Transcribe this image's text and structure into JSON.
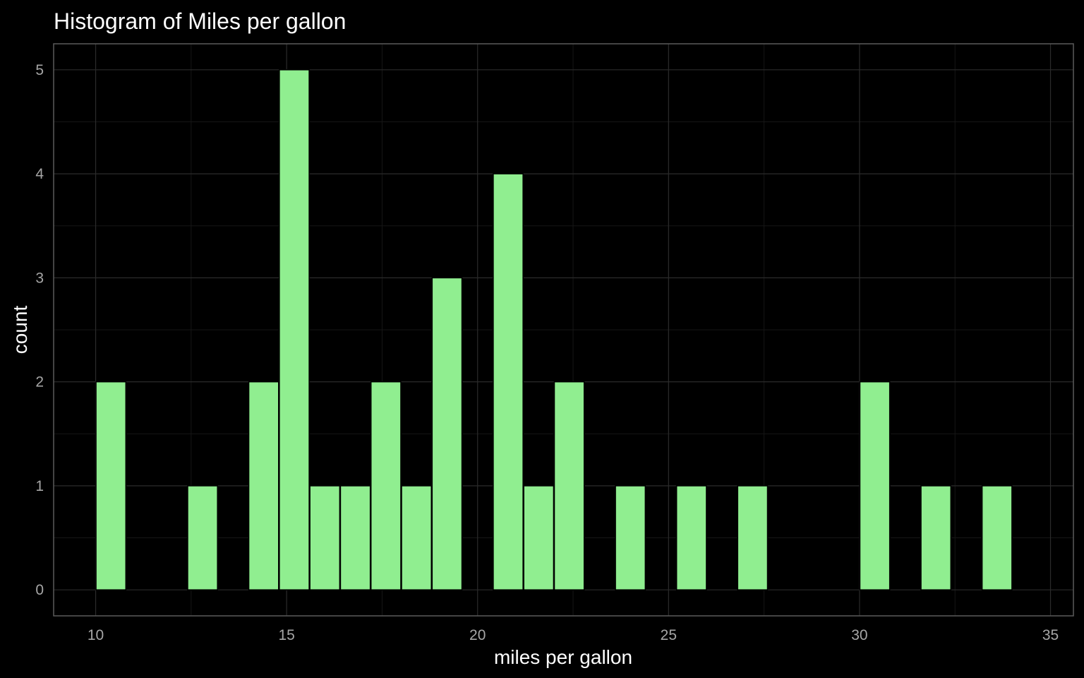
{
  "chart_data": {
    "type": "bar",
    "title": "Histogram of Miles per gallon",
    "xlabel": "miles per gallon",
    "ylabel": "count",
    "bin_width": 0.78,
    "bins": [
      {
        "center": 10.4,
        "count": 2
      },
      {
        "center": 11.2,
        "count": 0
      },
      {
        "center": 12.0,
        "count": 0
      },
      {
        "center": 12.8,
        "count": 1
      },
      {
        "center": 13.6,
        "count": 0
      },
      {
        "center": 14.4,
        "count": 2
      },
      {
        "center": 15.2,
        "count": 5
      },
      {
        "center": 16.0,
        "count": 1
      },
      {
        "center": 16.8,
        "count": 1
      },
      {
        "center": 17.6,
        "count": 2
      },
      {
        "center": 18.4,
        "count": 1
      },
      {
        "center": 19.2,
        "count": 3
      },
      {
        "center": 20.0,
        "count": 0
      },
      {
        "center": 20.8,
        "count": 4
      },
      {
        "center": 21.6,
        "count": 1
      },
      {
        "center": 22.4,
        "count": 2
      },
      {
        "center": 23.2,
        "count": 0
      },
      {
        "center": 24.0,
        "count": 1
      },
      {
        "center": 24.8,
        "count": 0
      },
      {
        "center": 25.6,
        "count": 1
      },
      {
        "center": 26.4,
        "count": 0
      },
      {
        "center": 27.2,
        "count": 1
      },
      {
        "center": 28.0,
        "count": 0
      },
      {
        "center": 28.8,
        "count": 0
      },
      {
        "center": 29.6,
        "count": 0
      },
      {
        "center": 30.4,
        "count": 2
      },
      {
        "center": 31.2,
        "count": 0
      },
      {
        "center": 32.0,
        "count": 1
      },
      {
        "center": 32.8,
        "count": 0
      },
      {
        "center": 33.6,
        "count": 1
      }
    ],
    "xlim": [
      8.9,
      35.6
    ],
    "ylim": [
      -0.25,
      5.25
    ],
    "xticks": [
      10,
      15,
      20,
      25,
      30,
      35
    ],
    "yticks": [
      0,
      1,
      2,
      3,
      4,
      5
    ],
    "grid": true,
    "colors": {
      "background": "#000000",
      "bar_fill": "#90ee90",
      "bar_outline": "#000000",
      "grid_major": "#2b2b2b",
      "grid_minor": "#161616",
      "panel_border": "#5a5a5a",
      "tick_text": "#a6a6a6",
      "title_text": "#ffffff"
    }
  }
}
